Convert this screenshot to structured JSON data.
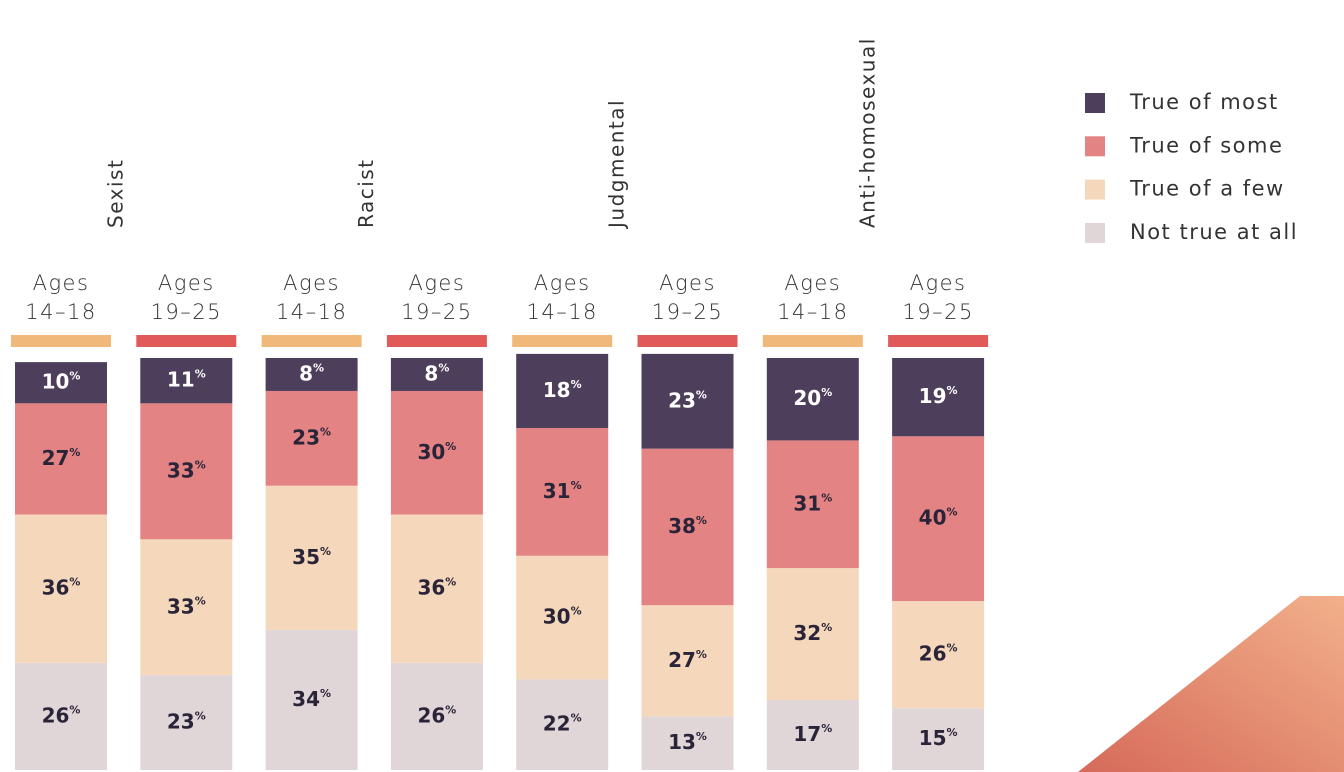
{
  "chart_data": {
    "type": "stacked_bar",
    "categories": [
      [
        "Ages",
        "14–18"
      ],
      [
        "Ages",
        "19–25"
      ],
      [
        "Ages",
        "14–18"
      ],
      [
        "Ages",
        "19–25"
      ],
      [
        "Ages",
        "14–18"
      ],
      [
        "Ages",
        "19–25"
      ],
      [
        "Ages",
        "14–18"
      ],
      [
        "Ages",
        "19–25"
      ]
    ],
    "category_colors": [
      "#f0b97a",
      "#e05a5a",
      "#f0b97a",
      "#e05a5a",
      "#f0b97a",
      "#e05a5a",
      "#f0b97a",
      "#e05a5a"
    ],
    "groups": [
      "Sexist",
      "Racist",
      "Judgmental",
      "Anti-homosexual"
    ],
    "ylim": [
      0,
      100
    ],
    "series": [
      {
        "name": "True of most",
        "color": "#4d3f5c",
        "label_color": "#ffffff",
        "values": [
          10,
          11,
          8,
          8,
          18,
          23,
          20,
          19
        ],
        "value_labels": [
          "10%",
          "11%",
          "8%",
          "8%",
          "18%",
          "23%",
          "20%",
          "19%"
        ]
      },
      {
        "name": "True of some",
        "color": "#e38384",
        "label_color": "#2a2438",
        "values": [
          27,
          33,
          23,
          30,
          31,
          38,
          31,
          40
        ],
        "value_labels": [
          "27%",
          "33%",
          "23%",
          "30%",
          "31%",
          "38%",
          "31%",
          "40%"
        ]
      },
      {
        "name": "True of a few",
        "color": "#f5d8bb",
        "label_color": "#2a2438",
        "values": [
          36,
          33,
          35,
          36,
          30,
          27,
          32,
          26
        ],
        "value_labels": [
          "36%",
          "33%",
          "35%",
          "36%",
          "30%",
          "27%",
          "32%",
          "26%"
        ]
      },
      {
        "name": "Not true at all",
        "color": "#e0d6d8",
        "label_color": "#2a2438",
        "values": [
          26,
          23,
          34,
          26,
          22,
          13,
          17,
          15
        ],
        "value_labels": [
          "26%",
          "23%",
          "34%",
          "26%",
          "22%",
          "13%",
          "17%",
          "15%"
        ]
      }
    ]
  }
}
